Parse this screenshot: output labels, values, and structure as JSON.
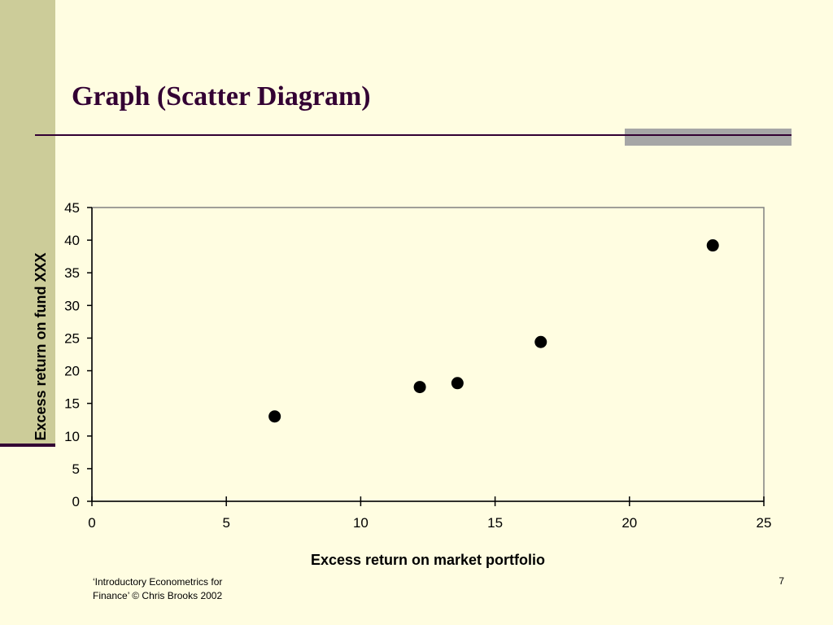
{
  "slide": {
    "title": "Graph (Scatter Diagram)",
    "footer_line1": "‘Introductory Econometrics for",
    "footer_line2": "Finance’ © Chris Brooks 2002",
    "page_number": "7"
  },
  "colors": {
    "background": "#FFFDE1",
    "side_band": "#CCCC99",
    "accent_dark": "#330033",
    "accent_gray": "#A6A6A6",
    "points": "#000000"
  },
  "chart_data": {
    "type": "scatter",
    "title": "",
    "xlabel": "Excess return on market portfolio",
    "ylabel": "Excess return on fund XXX",
    "xlim": [
      0,
      25
    ],
    "ylim": [
      0,
      45
    ],
    "xticks": [
      0,
      5,
      10,
      15,
      20,
      25
    ],
    "yticks": [
      0,
      5,
      10,
      15,
      20,
      25,
      30,
      35,
      40,
      45
    ],
    "grid": false,
    "legend": "none",
    "series": [
      {
        "points": [
          {
            "x": 6.8,
            "y": 13.0
          },
          {
            "x": 12.2,
            "y": 17.5
          },
          {
            "x": 13.6,
            "y": 18.1
          },
          {
            "x": 16.7,
            "y": 24.4
          },
          {
            "x": 23.1,
            "y": 39.2
          }
        ]
      }
    ]
  }
}
